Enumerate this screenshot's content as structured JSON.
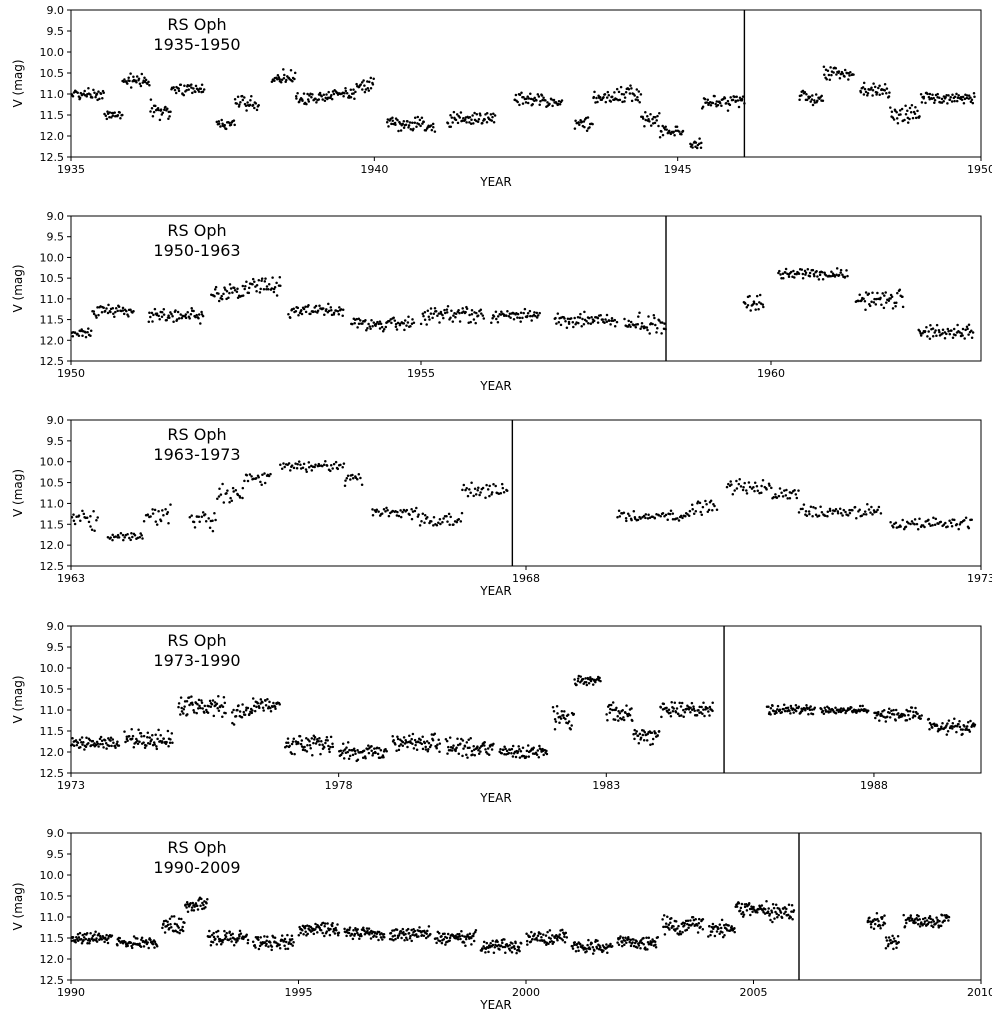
{
  "chart_data": [
    {
      "type": "scatter",
      "title_lines": [
        "RS Oph",
        "1935-1950"
      ],
      "xlabel": "YEAR",
      "ylabel": "V (mag)",
      "xlim": [
        1935,
        1950
      ],
      "ylim": [
        12.5,
        9.0
      ],
      "x_ticks": [
        "1935",
        "1940",
        "1945",
        "1950"
      ],
      "y_ticks": [
        "9.0",
        "9.5",
        "10.0",
        "10.5",
        "11.0",
        "11.5",
        "12.0",
        "12.5"
      ],
      "marker_year": 1946.1,
      "segments": [
        [
          1935.0,
          1935.55,
          11.0,
          0.15
        ],
        [
          1935.55,
          1935.85,
          11.5,
          0.15
        ],
        [
          1935.85,
          1936.3,
          10.7,
          0.2
        ],
        [
          1936.3,
          1936.65,
          11.4,
          0.3
        ],
        [
          1936.65,
          1937.2,
          10.9,
          0.15
        ],
        [
          1937.4,
          1937.7,
          11.7,
          0.15
        ],
        [
          1937.7,
          1938.1,
          11.2,
          0.25
        ],
        [
          1938.3,
          1938.7,
          10.6,
          0.2
        ],
        [
          1938.7,
          1939.2,
          11.1,
          0.2
        ],
        [
          1939.2,
          1939.7,
          11.0,
          0.15
        ],
        [
          1939.7,
          1940.0,
          10.8,
          0.2
        ],
        [
          1940.2,
          1940.8,
          11.7,
          0.2
        ],
        [
          1940.8,
          1941.0,
          11.8,
          0.2
        ],
        [
          1941.2,
          1942.0,
          11.6,
          0.2
        ],
        [
          1942.3,
          1942.8,
          11.1,
          0.2
        ],
        [
          1942.8,
          1943.1,
          11.2,
          0.15
        ],
        [
          1943.3,
          1943.6,
          11.7,
          0.2
        ],
        [
          1943.6,
          1944.0,
          11.1,
          0.2
        ],
        [
          1944.0,
          1944.4,
          11.0,
          0.25
        ],
        [
          1944.4,
          1944.7,
          11.6,
          0.2
        ],
        [
          1944.7,
          1945.1,
          11.9,
          0.15
        ],
        [
          1945.2,
          1945.4,
          12.2,
          0.15
        ],
        [
          1945.4,
          1946.1,
          11.2,
          0.2
        ],
        [
          1947.0,
          1947.4,
          11.1,
          0.2
        ],
        [
          1947.4,
          1947.9,
          10.5,
          0.2
        ],
        [
          1948.0,
          1948.5,
          10.9,
          0.2
        ],
        [
          1948.5,
          1949.0,
          11.5,
          0.25
        ],
        [
          1949.0,
          1949.9,
          11.1,
          0.15
        ]
      ]
    },
    {
      "type": "scatter",
      "title_lines": [
        "RS Oph",
        "1950-1963"
      ],
      "xlabel": "YEAR",
      "ylabel": "V (mag)",
      "xlim": [
        1950,
        1963
      ],
      "ylim": [
        12.5,
        9.0
      ],
      "x_ticks": [
        "1950",
        "1955",
        "1960"
      ],
      "y_ticks": [
        "9.0",
        "9.5",
        "10.0",
        "10.5",
        "11.0",
        "11.5",
        "12.0",
        "12.5"
      ],
      "marker_year": 1958.5,
      "segments": [
        [
          1950.0,
          1950.3,
          11.8,
          0.15
        ],
        [
          1950.3,
          1950.9,
          11.3,
          0.2
        ],
        [
          1951.1,
          1951.9,
          11.4,
          0.2
        ],
        [
          1952.0,
          1952.5,
          10.9,
          0.3
        ],
        [
          1952.5,
          1953.0,
          10.7,
          0.25
        ],
        [
          1953.1,
          1953.9,
          11.3,
          0.2
        ],
        [
          1954.0,
          1954.9,
          11.6,
          0.2
        ],
        [
          1955.0,
          1955.9,
          11.4,
          0.25
        ],
        [
          1956.0,
          1956.7,
          11.4,
          0.2
        ],
        [
          1956.9,
          1957.8,
          11.5,
          0.2
        ],
        [
          1957.9,
          1958.5,
          11.6,
          0.3
        ],
        [
          1959.6,
          1959.9,
          11.1,
          0.3
        ],
        [
          1960.1,
          1961.1,
          10.4,
          0.15
        ],
        [
          1961.2,
          1961.9,
          11.0,
          0.3
        ],
        [
          1962.1,
          1962.9,
          11.8,
          0.2
        ]
      ]
    },
    {
      "type": "scatter",
      "title_lines": [
        "RS Oph",
        "1963-1973"
      ],
      "xlabel": "YEAR",
      "ylabel": "V (mag)",
      "xlim": [
        1963,
        1973
      ],
      "ylim": [
        12.5,
        9.0
      ],
      "x_ticks": [
        "1963",
        "1968",
        "1973"
      ],
      "y_ticks": [
        "9.0",
        "9.5",
        "10.0",
        "10.5",
        "11.0",
        "11.5",
        "12.0",
        "12.5"
      ],
      "marker_year": 1967.85,
      "segments": [
        [
          1963.0,
          1963.3,
          11.4,
          0.3
        ],
        [
          1963.4,
          1963.8,
          11.8,
          0.1
        ],
        [
          1963.8,
          1964.1,
          11.3,
          0.3
        ],
        [
          1964.3,
          1964.6,
          11.4,
          0.3
        ],
        [
          1964.6,
          1964.9,
          10.8,
          0.3
        ],
        [
          1964.9,
          1965.2,
          10.4,
          0.2
        ],
        [
          1965.3,
          1966.0,
          10.1,
          0.15
        ],
        [
          1966.0,
          1966.2,
          10.4,
          0.2
        ],
        [
          1966.3,
          1966.8,
          11.2,
          0.2
        ],
        [
          1966.8,
          1967.3,
          11.4,
          0.2
        ],
        [
          1967.3,
          1967.8,
          10.7,
          0.2
        ],
        [
          1969.0,
          1969.8,
          11.3,
          0.15
        ],
        [
          1969.8,
          1970.1,
          11.1,
          0.2
        ],
        [
          1970.2,
          1970.7,
          10.6,
          0.2
        ],
        [
          1970.7,
          1971.0,
          10.8,
          0.2
        ],
        [
          1971.0,
          1971.9,
          11.2,
          0.2
        ],
        [
          1972.0,
          1972.9,
          11.5,
          0.2
        ]
      ]
    },
    {
      "type": "scatter",
      "title_lines": [
        "RS Oph",
        "1973-1990"
      ],
      "xlabel": "YEAR",
      "ylabel": "V (mag)",
      "xlim": [
        1973,
        1990
      ],
      "ylim": [
        12.5,
        9.0
      ],
      "x_ticks": [
        "1973",
        "1978",
        "1983",
        "1988"
      ],
      "y_ticks": [
        "9.0",
        "9.5",
        "10.0",
        "10.5",
        "11.0",
        "11.5",
        "12.0",
        "12.5"
      ],
      "marker_year": 1985.2,
      "segments": [
        [
          1973.0,
          1973.9,
          11.8,
          0.2
        ],
        [
          1974.0,
          1974.9,
          11.7,
          0.25
        ],
        [
          1975.0,
          1975.9,
          10.9,
          0.3
        ],
        [
          1976.0,
          1976.4,
          11.1,
          0.3
        ],
        [
          1976.4,
          1976.9,
          10.9,
          0.2
        ],
        [
          1977.0,
          1977.9,
          11.8,
          0.3
        ],
        [
          1978.0,
          1978.9,
          12.0,
          0.25
        ],
        [
          1979.0,
          1979.9,
          11.8,
          0.25
        ],
        [
          1980.0,
          1980.9,
          11.9,
          0.3
        ],
        [
          1981.0,
          1981.9,
          12.0,
          0.2
        ],
        [
          1982.0,
          1982.4,
          11.2,
          0.3
        ],
        [
          1982.4,
          1982.9,
          10.3,
          0.15
        ],
        [
          1983.0,
          1983.5,
          11.1,
          0.3
        ],
        [
          1983.5,
          1984.0,
          11.6,
          0.3
        ],
        [
          1984.0,
          1985.0,
          11.0,
          0.2
        ],
        [
          1986.0,
          1986.9,
          11.0,
          0.15
        ],
        [
          1987.0,
          1987.9,
          11.0,
          0.1
        ],
        [
          1988.0,
          1988.9,
          11.1,
          0.2
        ],
        [
          1989.0,
          1989.9,
          11.4,
          0.2
        ]
      ]
    },
    {
      "type": "scatter",
      "title_lines": [
        "RS Oph",
        "1990-2009"
      ],
      "xlabel": "YEAR",
      "ylabel": "V (mag)",
      "xlim": [
        1990,
        2010
      ],
      "ylim": [
        12.5,
        9.0
      ],
      "x_ticks": [
        "1990",
        "1995",
        "2000",
        "2005",
        "2010"
      ],
      "y_ticks": [
        "9.0",
        "9.5",
        "10.0",
        "10.5",
        "11.0",
        "11.5",
        "12.0",
        "12.5"
      ],
      "marker_year": 2006.0,
      "segments": [
        [
          1990.0,
          1990.9,
          11.5,
          0.15
        ],
        [
          1991.0,
          1991.9,
          11.6,
          0.15
        ],
        [
          1992.0,
          1992.5,
          11.2,
          0.3
        ],
        [
          1992.5,
          1993.0,
          10.7,
          0.2
        ],
        [
          1993.0,
          1993.9,
          11.5,
          0.2
        ],
        [
          1994.0,
          1994.9,
          11.6,
          0.2
        ],
        [
          1995.0,
          1995.9,
          11.3,
          0.2
        ],
        [
          1996.0,
          1996.9,
          11.4,
          0.2
        ],
        [
          1997.0,
          1997.9,
          11.4,
          0.2
        ],
        [
          1998.0,
          1998.9,
          11.5,
          0.2
        ],
        [
          1999.0,
          1999.9,
          11.7,
          0.2
        ],
        [
          2000.0,
          2000.9,
          11.5,
          0.2
        ],
        [
          2001.0,
          2001.9,
          11.7,
          0.2
        ],
        [
          2002.0,
          2002.9,
          11.6,
          0.2
        ],
        [
          2003.0,
          2003.9,
          11.2,
          0.25
        ],
        [
          2004.0,
          2004.6,
          11.3,
          0.25
        ],
        [
          2004.6,
          2005.3,
          10.8,
          0.2
        ],
        [
          2005.3,
          2005.9,
          10.9,
          0.25
        ],
        [
          2007.5,
          2007.9,
          11.1,
          0.25
        ],
        [
          2007.9,
          2008.2,
          11.6,
          0.25
        ],
        [
          2008.3,
          2009.3,
          11.1,
          0.2
        ]
      ]
    }
  ]
}
